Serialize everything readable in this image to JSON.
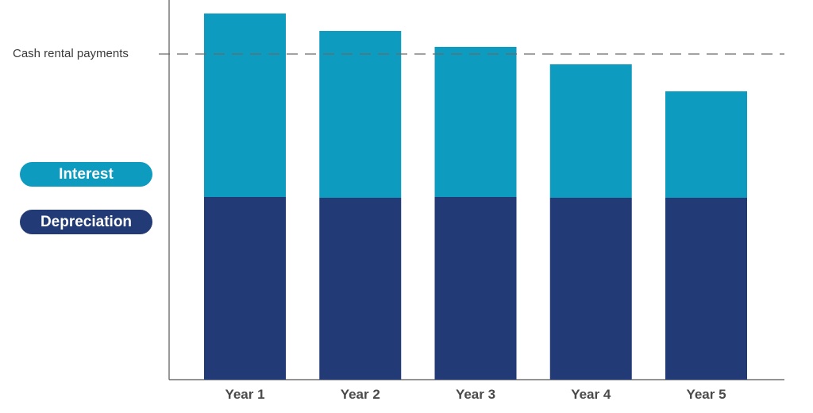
{
  "chart_data": {
    "type": "bar",
    "stacked": true,
    "categories": [
      "Year 1",
      "Year 2",
      "Year 3",
      "Year 4",
      "Year 5"
    ],
    "series": [
      {
        "name": "Depreciation",
        "values": [
          230,
          229,
          230,
          229,
          229
        ],
        "color": "#223a75"
      },
      {
        "name": "Interest",
        "values": [
          231,
          210,
          189,
          168,
          134
        ],
        "color": "#0e9bc0"
      }
    ],
    "reference_line": {
      "label": "Cash rental payments",
      "value": 410,
      "style": "dashed"
    },
    "ylim": [
      0,
      478
    ],
    "grid": false,
    "legend": "left",
    "title": "",
    "xlabel": "",
    "ylabel": ""
  }
}
